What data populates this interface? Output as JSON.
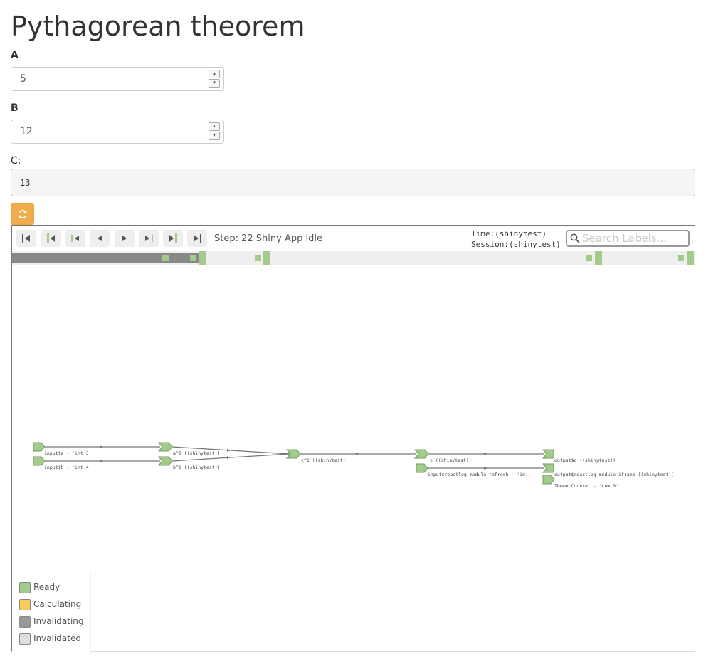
{
  "page": {
    "title": "Pythagorean theorem"
  },
  "inputs": {
    "a": {
      "label": "A",
      "value": "5"
    },
    "b": {
      "label": "B",
      "value": "12"
    },
    "c": {
      "label": "C:",
      "value": "13"
    }
  },
  "refresh_button": {
    "icon": "refresh-icon",
    "color": "#f0ad4e"
  },
  "reactlog": {
    "toolbar": {
      "buttons": [
        "first-step-icon",
        "prev-cycle-icon",
        "prev-idle-icon",
        "prev-step-icon",
        "next-step-icon",
        "next-idle-icon",
        "next-cycle-icon",
        "last-step-icon"
      ],
      "step_label": "Step: 22",
      "status": "Shiny App idle",
      "time_label": "Time:(shinytest)",
      "session_label": "Session:(shinytest)",
      "search_placeholder": "Search Labels..."
    },
    "graph": {
      "nodes": {
        "input_a": "input$a - 'int 3'",
        "input_b": "input$b - 'int 4'",
        "a2": "a^2 ((shinytest))",
        "b2": "b^2 ((shinytest))",
        "c2": "c^2 ((shinytest))",
        "c": "c ((shinytest))",
        "refresh": "input$reactlog_module-refresh - 'in...",
        "output_c": "output$c ((shinytest))",
        "output_iframe": "output$reactlog_module-iframe ((shinytest))",
        "theme": "Theme Counter - 'num 0'"
      }
    },
    "legend": [
      {
        "label": "Ready",
        "color": "#a4cb8e"
      },
      {
        "label": "Calculating",
        "color": "#fcc95b"
      },
      {
        "label": "Invalidating",
        "color": "#999999"
      },
      {
        "label": "Invalidated",
        "color": "#dddddd"
      }
    ]
  },
  "colors": {
    "ready": "#a4cb8e",
    "ready_border": "#6f9f5a",
    "edge": "#777777",
    "timeline_fill": "#888888"
  }
}
